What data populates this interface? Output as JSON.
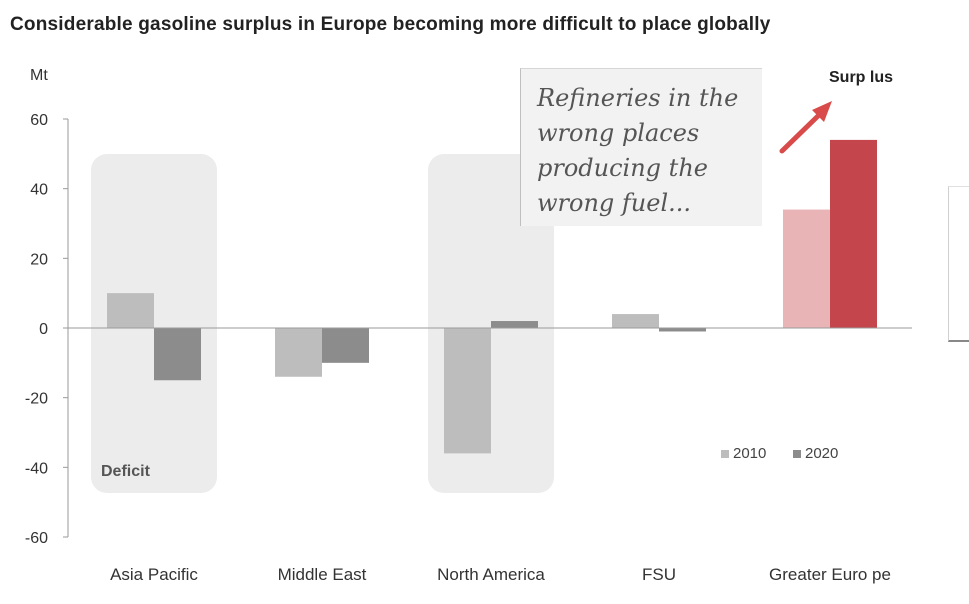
{
  "title": "Considerable gasoline surplus in Europe becoming more difficult to place globally",
  "callout": {
    "lines": [
      "Refineries in the",
      "wrong places",
      "producing the",
      "wrong fuel..."
    ]
  },
  "annotations": {
    "deficit": "Deficit",
    "surplus": "Surp lus"
  },
  "colors": {
    "s2010": "#bdbdbd",
    "s2020": "#8c8c8c",
    "europe2010": "#e8b4b6",
    "europe2020": "#c4454b",
    "highlight": "#ececec",
    "arrow": "#d94a4a"
  },
  "chart_data": {
    "type": "bar",
    "title": "Considerable gasoline surplus in Europe becoming more difficult to place globally",
    "ylabel": "Mt",
    "xlabel": "",
    "ylim": [
      -60,
      60
    ],
    "yticks": [
      60,
      40,
      20,
      0,
      -20,
      -40,
      -60
    ],
    "categories": [
      "Asia Pacific",
      "Middle East",
      "North America",
      "FSU",
      "Greater Euro pe"
    ],
    "series": [
      {
        "name": "2010",
        "values": [
          10,
          -14,
          -36,
          4,
          34
        ]
      },
      {
        "name": "2020",
        "values": [
          -15,
          -10,
          2,
          -1,
          54
        ]
      }
    ],
    "legend_position": "bottom-right",
    "grid": false,
    "highlighted_categories": [
      "Asia Pacific",
      "North America"
    ]
  }
}
